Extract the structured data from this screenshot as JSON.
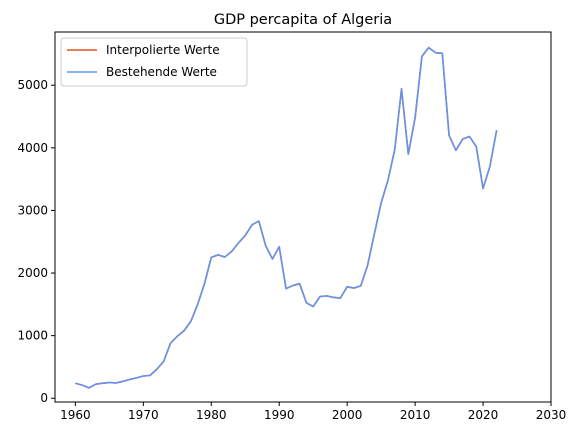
{
  "chart_data": {
    "type": "line",
    "title": "GDP percapita of Algeria",
    "xlabel": "",
    "ylabel": "",
    "xlim": [
      1957,
      2030
    ],
    "ylim": [
      -60,
      5850
    ],
    "xticks": [
      1960,
      1970,
      1980,
      1990,
      2000,
      2010,
      2020,
      2030
    ],
    "yticks": [
      0,
      1000,
      2000,
      3000,
      4000,
      5000
    ],
    "grid": false,
    "legend_position": "top-left",
    "x": [
      1960,
      1961,
      1962,
      1963,
      1964,
      1965,
      1966,
      1967,
      1968,
      1969,
      1970,
      1971,
      1972,
      1973,
      1974,
      1975,
      1976,
      1977,
      1978,
      1979,
      1980,
      1981,
      1982,
      1983,
      1984,
      1985,
      1986,
      1987,
      1988,
      1989,
      1990,
      1991,
      1992,
      1993,
      1994,
      1995,
      1996,
      1997,
      1998,
      1999,
      2000,
      2001,
      2002,
      2003,
      2004,
      2005,
      2006,
      2007,
      2008,
      2009,
      2010,
      2011,
      2012,
      2013,
      2014,
      2015,
      2016,
      2017,
      2018,
      2019,
      2020,
      2021,
      2022
    ],
    "series": [
      {
        "name": "Interpolierte Werte",
        "color": "#e8501e",
        "values": [
          240,
          210,
          165,
          225,
          240,
          250,
          245,
          270,
          300,
          325,
          355,
          365,
          465,
          590,
          880,
          990,
          1080,
          1230,
          1500,
          1830,
          2250,
          2290,
          2255,
          2345,
          2480,
          2600,
          2770,
          2830,
          2440,
          2225,
          2420,
          1750,
          1800,
          1830,
          1525,
          1465,
          1625,
          1635,
          1610,
          1600,
          1780,
          1760,
          1795,
          2120,
          2625,
          3120,
          3480,
          3970,
          4940,
          3900,
          4480,
          5460,
          5600,
          5520,
          5510,
          4200,
          3960,
          4140,
          4180,
          4020,
          3350,
          3700,
          4280
        ]
      },
      {
        "name": "Bestehende Werte",
        "color": "#6495ed",
        "values": [
          240,
          210,
          165,
          225,
          240,
          250,
          245,
          270,
          300,
          325,
          355,
          365,
          465,
          590,
          880,
          990,
          1080,
          1230,
          1500,
          1830,
          2250,
          2290,
          2255,
          2345,
          2480,
          2600,
          2770,
          2830,
          2440,
          2225,
          2420,
          1750,
          1800,
          1830,
          1525,
          1465,
          1625,
          1635,
          1610,
          1600,
          1780,
          1760,
          1795,
          2120,
          2625,
          3120,
          3480,
          3970,
          4940,
          3900,
          4480,
          5460,
          5600,
          5520,
          5510,
          4200,
          3960,
          4140,
          4180,
          4020,
          3350,
          3700,
          4280
        ]
      }
    ]
  }
}
